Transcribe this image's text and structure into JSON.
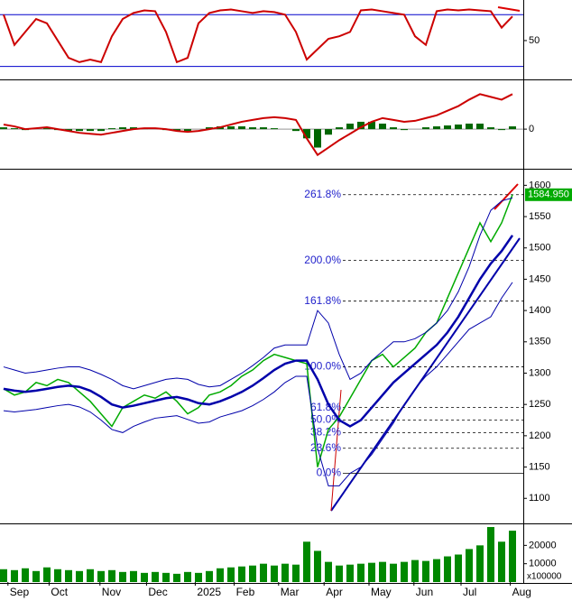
{
  "chart_data": [
    {
      "type": "line",
      "x": [
        0,
        1,
        2,
        3,
        4,
        5,
        6,
        7,
        8,
        9,
        10,
        11,
        12,
        13,
        14,
        15,
        16,
        17,
        18,
        19,
        20,
        21,
        22,
        23,
        24,
        25,
        26,
        27,
        28,
        29,
        30,
        31,
        32,
        33,
        34,
        35,
        36,
        37,
        38,
        39,
        40,
        41,
        42,
        43,
        44,
        45,
        46,
        47
      ],
      "series": [
        {
          "color": "#cc0000",
          "values": [
            80,
            45,
            60,
            75,
            70,
            50,
            30,
            25,
            28,
            25,
            55,
            75,
            82,
            85,
            84,
            60,
            25,
            30,
            70,
            82,
            85,
            86,
            84,
            82,
            84,
            83,
            80,
            60,
            28,
            40,
            52,
            55,
            60,
            85,
            86,
            84,
            82,
            80,
            55,
            45,
            84,
            86,
            85,
            86,
            85,
            84,
            65,
            78
          ]
        }
      ],
      "ylim": [
        5,
        97
      ],
      "yticks": [
        50
      ],
      "levels": [
        20,
        80
      ],
      "level_color": "#0000cc"
    },
    {
      "type": "macd",
      "x": [
        0,
        1,
        2,
        3,
        4,
        5,
        6,
        7,
        8,
        9,
        10,
        11,
        12,
        13,
        14,
        15,
        16,
        17,
        18,
        19,
        20,
        21,
        22,
        23,
        24,
        25,
        26,
        27,
        28,
        29,
        30,
        31,
        32,
        33,
        34,
        35,
        36,
        37,
        38,
        39,
        40,
        41,
        42,
        43,
        44,
        45,
        46,
        47
      ],
      "series": [
        {
          "color": "#cc0000",
          "values": [
            5,
            3,
            0,
            1,
            2,
            0,
            -2,
            -4,
            -5,
            -6,
            -4,
            -2,
            0,
            1,
            1,
            0,
            -2,
            -3,
            -2,
            0,
            2,
            5,
            8,
            10,
            12,
            13,
            12,
            10,
            -10,
            -28,
            -20,
            -12,
            -5,
            2,
            8,
            12,
            10,
            8,
            9,
            12,
            15,
            20,
            25,
            32,
            38,
            35,
            32,
            38
          ]
        }
      ],
      "bars": {
        "color": "#006600",
        "values": [
          2,
          1,
          -1,
          0,
          1,
          -1,
          -2,
          -2,
          -2,
          -2,
          1,
          2,
          2,
          1,
          0,
          -1,
          -2,
          -2,
          0,
          2,
          3,
          3,
          3,
          2,
          2,
          1,
          0,
          -2,
          -10,
          -20,
          -6,
          2,
          6,
          8,
          8,
          6,
          2,
          -1,
          0,
          2,
          3,
          4,
          5,
          6,
          6,
          2,
          -1,
          3
        ]
      },
      "ylim": [
        -43,
        53
      ],
      "yticks": [
        0
      ]
    },
    {
      "type": "line",
      "x": [
        0,
        1,
        2,
        3,
        4,
        5,
        6,
        7,
        8,
        9,
        10,
        11,
        12,
        13,
        14,
        15,
        16,
        17,
        18,
        19,
        20,
        21,
        22,
        23,
        24,
        25,
        26,
        27,
        28,
        29,
        30,
        31,
        32,
        33,
        34,
        35,
        36,
        37,
        38,
        39,
        40,
        41,
        42,
        43,
        44,
        45,
        46,
        47
      ],
      "series": [
        {
          "color": "#00aa00",
          "values": [
            1275,
            1265,
            1270,
            1285,
            1280,
            1290,
            1285,
            1270,
            1255,
            1235,
            1215,
            1245,
            1255,
            1265,
            1260,
            1270,
            1255,
            1235,
            1245,
            1265,
            1270,
            1280,
            1295,
            1305,
            1320,
            1330,
            1325,
            1320,
            1315,
            1150,
            1210,
            1230,
            1260,
            1290,
            1320,
            1330,
            1310,
            1325,
            1340,
            1365,
            1380,
            1420,
            1460,
            1500,
            1540,
            1510,
            1540,
            1585
          ]
        },
        {
          "color": "#0000aa",
          "values": [
            1275,
            1272,
            1270,
            1272,
            1275,
            1278,
            1280,
            1278,
            1272,
            1262,
            1250,
            1245,
            1248,
            1252,
            1256,
            1260,
            1262,
            1258,
            1252,
            1250,
            1255,
            1262,
            1270,
            1280,
            1292,
            1305,
            1315,
            1320,
            1320,
            1290,
            1250,
            1225,
            1215,
            1225,
            1245,
            1265,
            1285,
            1300,
            1315,
            1330,
            1345,
            1365,
            1390,
            1420,
            1450,
            1475,
            1495,
            1520
          ]
        },
        {
          "color": "#0000aa",
          "values": [
            1310,
            1305,
            1300,
            1302,
            1305,
            1308,
            1310,
            1310,
            1305,
            1298,
            1290,
            1280,
            1275,
            1280,
            1285,
            1290,
            1292,
            1290,
            1282,
            1278,
            1280,
            1290,
            1300,
            1312,
            1325,
            1340,
            1345,
            1345,
            1345,
            1400,
            1380,
            1330,
            1290,
            1300,
            1320,
            1335,
            1350,
            1350,
            1355,
            1365,
            1380,
            1400,
            1430,
            1470,
            1520,
            1560,
            1575,
            1580
          ]
        },
        {
          "color": "#0000aa",
          "values": [
            1240,
            1238,
            1240,
            1242,
            1245,
            1248,
            1250,
            1246,
            1238,
            1225,
            1210,
            1205,
            1215,
            1222,
            1228,
            1230,
            1232,
            1226,
            1220,
            1222,
            1230,
            1235,
            1240,
            1248,
            1258,
            1270,
            1285,
            1295,
            1295,
            1180,
            1120,
            1120,
            1140,
            1150,
            1170,
            1195,
            1220,
            1250,
            1275,
            1295,
            1310,
            1330,
            1350,
            1370,
            1380,
            1390,
            1420,
            1445
          ]
        }
      ],
      "ylim": [
        1060,
        1625
      ],
      "yticks": [
        1100,
        1150,
        1200,
        1250,
        1300,
        1350,
        1400,
        1450,
        1500,
        1550,
        1600
      ],
      "fib": [
        {
          "label": "261.8%",
          "value": 1585
        },
        {
          "label": "200.0%",
          "value": 1480
        },
        {
          "label": "161.8%",
          "value": 1415
        },
        {
          "label": "100.0%",
          "value": 1310
        },
        {
          "label": "61.8%",
          "value": 1245
        },
        {
          "label": "50.0%",
          "value": 1225
        },
        {
          "label": "38.2%",
          "value": 1205
        },
        {
          "label": "23.6%",
          "value": 1180
        },
        {
          "label": "0.0%",
          "value": 1140
        }
      ],
      "fib_color": "#2222cc",
      "last_price": 1584.95,
      "last_price_label": "1584.950"
    },
    {
      "type": "bar",
      "x": [
        0,
        1,
        2,
        3,
        4,
        5,
        6,
        7,
        8,
        9,
        10,
        11,
        12,
        13,
        14,
        15,
        16,
        17,
        18,
        19,
        20,
        21,
        22,
        23,
        24,
        25,
        26,
        27,
        28,
        29,
        30,
        31,
        32,
        33,
        34,
        35,
        36,
        37,
        38,
        39,
        40,
        41,
        42,
        43,
        44,
        45,
        46,
        47
      ],
      "values": [
        7000,
        6500,
        7500,
        6000,
        8000,
        7000,
        6500,
        6000,
        7000,
        6000,
        6500,
        5500,
        6000,
        5000,
        5500,
        5000,
        4500,
        5500,
        5000,
        6000,
        7500,
        8000,
        8500,
        9000,
        10000,
        9000,
        10000,
        9500,
        22000,
        17000,
        11000,
        9000,
        9500,
        10000,
        10500,
        11000,
        10000,
        11000,
        12000,
        11500,
        12500,
        14000,
        15000,
        18000,
        20000,
        30000,
        22000,
        28000
      ],
      "color": "#008800",
      "ylim": [
        0,
        31000
      ],
      "yticks": [
        10000,
        20000
      ],
      "unit_label": "x100000",
      "xticks": [
        {
          "value": 0.4,
          "label": "Sep"
        },
        {
          "value": 4.2,
          "label": "Oct"
        },
        {
          "value": 8.9,
          "label": "Nov"
        },
        {
          "value": 13.2,
          "label": "Dec"
        },
        {
          "value": 17.7,
          "label": "2025"
        },
        {
          "value": 21.3,
          "label": "Feb"
        },
        {
          "value": 25.4,
          "label": "Mar"
        },
        {
          "value": 29.6,
          "label": "Apr"
        },
        {
          "value": 33.75,
          "label": "May"
        },
        {
          "value": 37.9,
          "label": "Jun"
        },
        {
          "value": 42.25,
          "label": "Jul"
        },
        {
          "value": 46.8,
          "label": "Aug"
        }
      ]
    }
  ]
}
